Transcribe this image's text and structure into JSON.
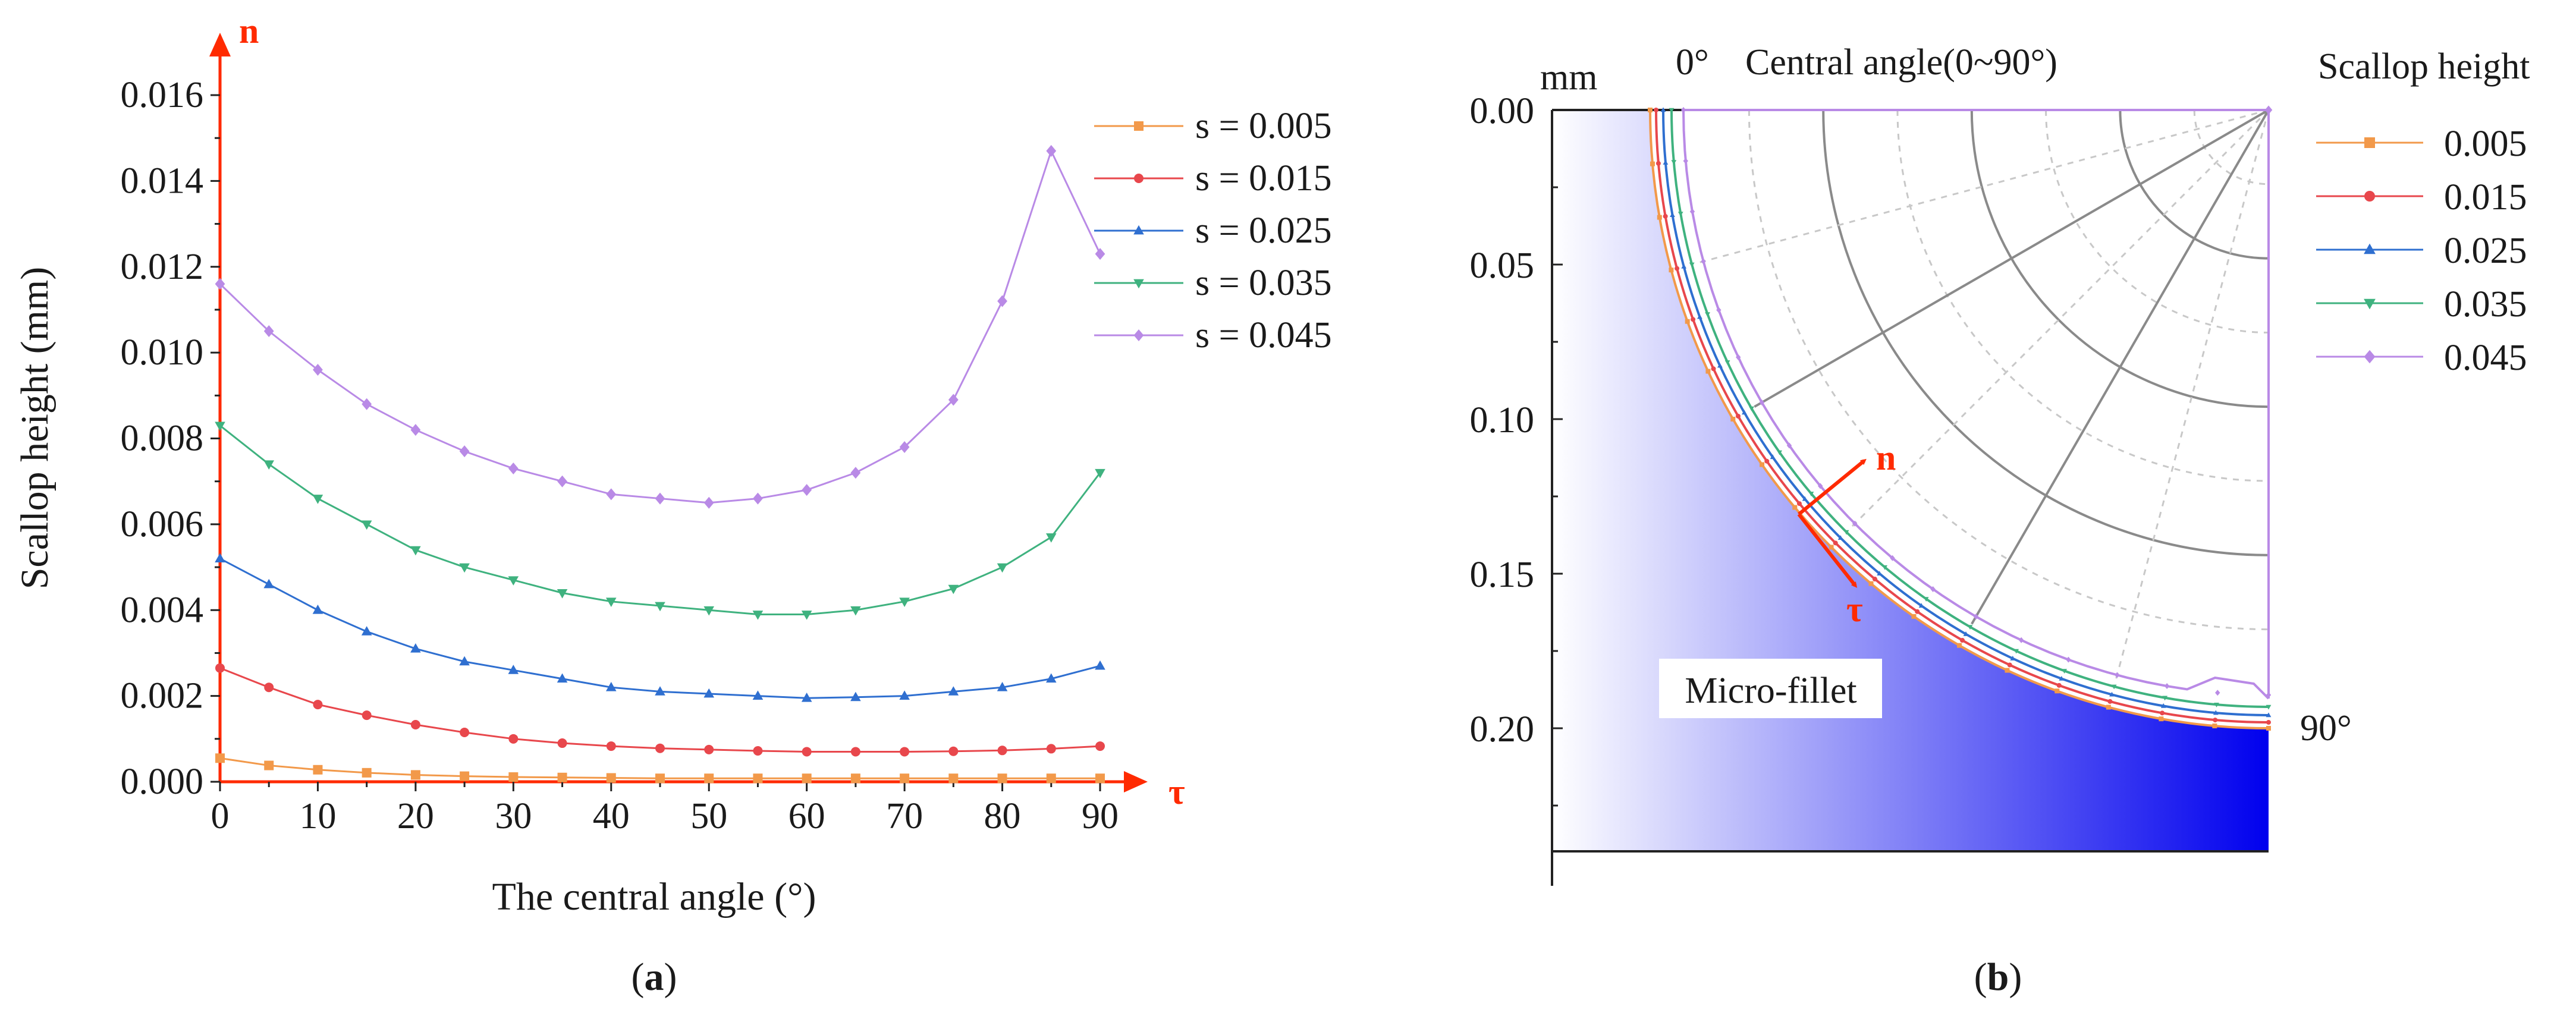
{
  "colors": {
    "s005": "#f2994a",
    "s015": "#e8474c",
    "s025": "#2f6fd0",
    "s035": "#3fb27f",
    "s045": "#b98ae6",
    "arrow": "#ff2a00",
    "fill_blue": "#0000ee"
  },
  "panel_a": {
    "label_open": "(",
    "label_letter": "a",
    "label_close": ")",
    "axis_arrow_n": "n",
    "axis_arrow_tau": "τ",
    "chart_data": {
      "type": "line",
      "xlabel": "The central angle (°)",
      "ylabel": "Scallop height (mm)",
      "xlim": [
        0,
        90
      ],
      "ylim": [
        0,
        0.016
      ],
      "x_ticks": [
        "0",
        "10",
        "20",
        "30",
        "40",
        "50",
        "60",
        "70",
        "80",
        "90"
      ],
      "y_ticks": [
        "0.000",
        "0.002",
        "0.004",
        "0.006",
        "0.008",
        "0.010",
        "0.012",
        "0.014",
        "0.016"
      ],
      "legend_position": "top-right",
      "x": [
        0,
        5,
        10,
        15,
        20,
        25,
        30,
        35,
        40,
        45,
        50,
        55,
        60,
        65,
        70,
        75,
        80,
        85,
        90
      ],
      "series": [
        {
          "name": "s = 0.005",
          "marker": "square",
          "values": [
            0.00055,
            0.00038,
            0.00028,
            0.00021,
            0.00016,
            0.00013,
            0.00011,
            0.0001,
            9e-05,
            8e-05,
            8e-05,
            8e-05,
            8e-05,
            8e-05,
            8e-05,
            8e-05,
            8e-05,
            8e-05,
            8e-05
          ]
        },
        {
          "name": "s = 0.015",
          "marker": "circle",
          "values": [
            0.00265,
            0.0022,
            0.0018,
            0.00155,
            0.00133,
            0.00115,
            0.001,
            0.0009,
            0.00083,
            0.00078,
            0.00075,
            0.00072,
            0.0007,
            0.0007,
            0.0007,
            0.00071,
            0.00073,
            0.00077,
            0.00083
          ]
        },
        {
          "name": "s = 0.025",
          "marker": "triangle-up",
          "values": [
            0.0052,
            0.0046,
            0.004,
            0.0035,
            0.0031,
            0.0028,
            0.0026,
            0.0024,
            0.0022,
            0.0021,
            0.00205,
            0.002,
            0.00195,
            0.00197,
            0.002,
            0.0021,
            0.0022,
            0.0024,
            0.0027
          ]
        },
        {
          "name": "s = 0.035",
          "marker": "triangle-down",
          "values": [
            0.0083,
            0.0074,
            0.0066,
            0.006,
            0.0054,
            0.005,
            0.0047,
            0.0044,
            0.0042,
            0.0041,
            0.004,
            0.0039,
            0.0039,
            0.004,
            0.0042,
            0.0045,
            0.005,
            0.0057,
            0.0072
          ]
        },
        {
          "name": "s = 0.045",
          "marker": "diamond",
          "values": [
            0.0116,
            0.0105,
            0.0096,
            0.0088,
            0.0082,
            0.0077,
            0.0073,
            0.007,
            0.0067,
            0.0066,
            0.0065,
            0.0066,
            0.0068,
            0.0072,
            0.0078,
            0.0089,
            0.0112,
            0.0147,
            0.0123
          ]
        }
      ]
    }
  },
  "panel_b": {
    "label_open": "(",
    "label_letter": "b",
    "label_close": ")",
    "unit": "mm",
    "angle_start": "0°",
    "angle_end": "90°",
    "top_title": "Central angle(0~90°)",
    "legend_title": "Scallop height",
    "region_label": "Micro-fillet",
    "arrow_n": "n",
    "arrow_tau": "τ",
    "chart_data": {
      "type": "line",
      "subtype": "polar-quadrant",
      "xlabel": "",
      "ylabel": "mm",
      "ylim": [
        0.0,
        0.24
      ],
      "y_ticks": [
        "0.00",
        "0.05",
        "0.10",
        "0.15",
        "0.20"
      ],
      "angle_range_deg": [
        0,
        90
      ],
      "fillet_radius_mm": 0.2,
      "legend_position": "right",
      "series": [
        {
          "name": "0.005",
          "marker": "square"
        },
        {
          "name": "0.015",
          "marker": "circle"
        },
        {
          "name": "0.025",
          "marker": "triangle-up"
        },
        {
          "name": "0.035",
          "marker": "triangle-down"
        },
        {
          "name": "0.045",
          "marker": "diamond"
        }
      ]
    }
  }
}
